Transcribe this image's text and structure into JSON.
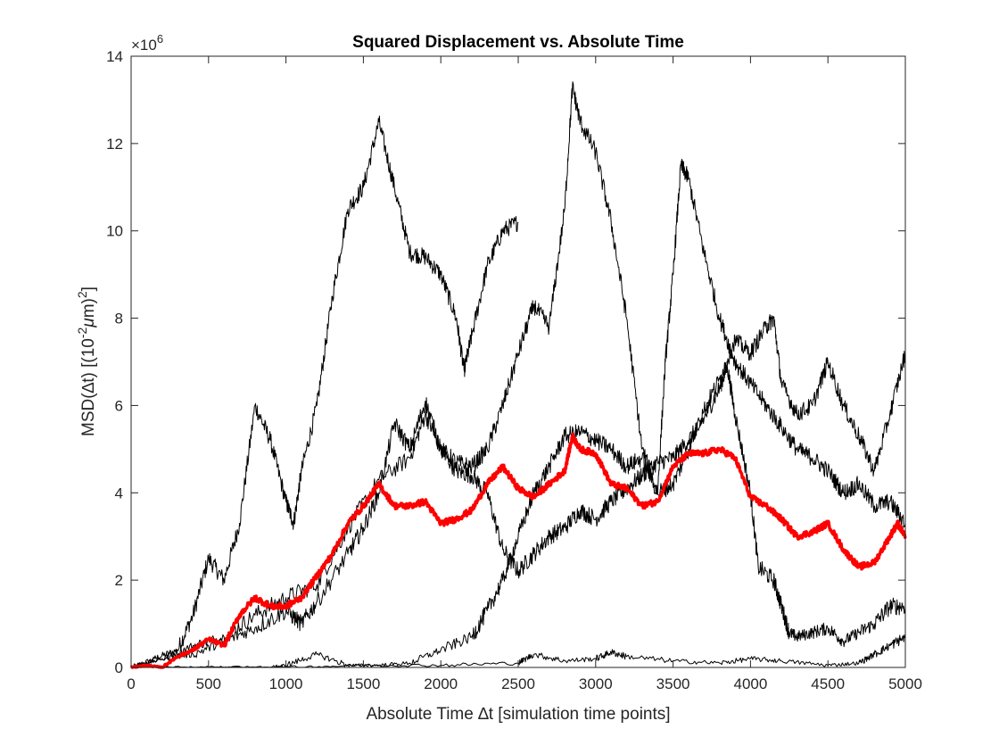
{
  "chart_data": {
    "type": "line",
    "title": "Squared Displacement vs. Absolute Time",
    "xlabel": "Absolute Time ∆t [simulation time points]",
    "ylabel": {
      "prefix": "MSD(∆t) [(10",
      "sup1": "-2",
      "mu": "μ",
      "mid": "m)",
      "sup2": "2",
      "suffix": "]"
    },
    "y_multiplier": {
      "base": "×10",
      "exponent": "6"
    },
    "xlim": [
      0,
      5000
    ],
    "ylim": [
      0,
      14000000
    ],
    "xticks": [
      0,
      500,
      1000,
      1500,
      2000,
      2500,
      3000,
      3500,
      4000,
      4500,
      5000
    ],
    "yticks": [
      0,
      2000000,
      4000000,
      6000000,
      8000000,
      10000000,
      12000000,
      14000000
    ],
    "ytick_labels": [
      "0",
      "2",
      "4",
      "6",
      "8",
      "10",
      "12",
      "14"
    ],
    "grid": false,
    "legend": "none",
    "series": [
      {
        "color": "#000000",
        "points": [
          [
            0,
            0
          ],
          [
            150,
            200000
          ],
          [
            300,
            400000
          ],
          [
            400,
            1200000
          ],
          [
            500,
            2500000
          ],
          [
            600,
            2000000
          ],
          [
            700,
            3300000
          ],
          [
            800,
            6000000
          ],
          [
            900,
            5200000
          ],
          [
            1000,
            3800000
          ],
          [
            1050,
            3300000
          ],
          [
            1100,
            4500000
          ],
          [
            1200,
            6000000
          ],
          [
            1300,
            8500000
          ],
          [
            1400,
            10500000
          ],
          [
            1500,
            11000000
          ],
          [
            1600,
            12500000
          ],
          [
            1700,
            11000000
          ],
          [
            1800,
            9500000
          ],
          [
            1900,
            9400000
          ],
          [
            2000,
            9000000
          ],
          [
            2100,
            8000000
          ],
          [
            2150,
            6800000
          ],
          [
            2200,
            7600000
          ],
          [
            2300,
            9200000
          ],
          [
            2400,
            10000000
          ],
          [
            2500,
            10200000
          ]
        ]
      },
      {
        "color": "#000000",
        "points": [
          [
            0,
            0
          ],
          [
            200,
            200000
          ],
          [
            400,
            500000
          ],
          [
            600,
            700000
          ],
          [
            800,
            1200000
          ],
          [
            1000,
            1600000
          ],
          [
            1200,
            1900000
          ],
          [
            1400,
            3200000
          ],
          [
            1600,
            4300000
          ],
          [
            1800,
            4800000
          ],
          [
            1900,
            5800000
          ],
          [
            2000,
            5000000
          ],
          [
            2100,
            4500000
          ],
          [
            2200,
            4400000
          ],
          [
            2300,
            4000000
          ],
          [
            2400,
            2700000
          ],
          [
            2500,
            2200000
          ],
          [
            2600,
            2600000
          ],
          [
            2700,
            3000000
          ],
          [
            2800,
            3200000
          ],
          [
            2900,
            3600000
          ],
          [
            3000,
            3400000
          ],
          [
            3100,
            3800000
          ],
          [
            3200,
            4100000
          ],
          [
            3300,
            4400000
          ],
          [
            3400,
            4700000
          ],
          [
            3500,
            4800000
          ],
          [
            3600,
            5200000
          ],
          [
            3700,
            5700000
          ],
          [
            3800,
            6400000
          ],
          [
            3850,
            6900000
          ],
          [
            3900,
            5800000
          ],
          [
            4000,
            4000000
          ],
          [
            4050,
            2300000
          ],
          [
            4150,
            2000000
          ],
          [
            4200,
            1400000
          ],
          [
            4250,
            800000
          ],
          [
            4300,
            700000
          ],
          [
            4400,
            800000
          ],
          [
            4500,
            900000
          ],
          [
            4600,
            600000
          ],
          [
            4700,
            800000
          ],
          [
            4800,
            1000000
          ],
          [
            4900,
            1400000
          ],
          [
            5000,
            1400000
          ]
        ]
      },
      {
        "color": "#000000",
        "points": [
          [
            0,
            0
          ],
          [
            200,
            200000
          ],
          [
            400,
            300000
          ],
          [
            600,
            600000
          ],
          [
            800,
            900000
          ],
          [
            1000,
            1300000
          ],
          [
            1100,
            1000000
          ],
          [
            1200,
            1500000
          ],
          [
            1400,
            2600000
          ],
          [
            1500,
            3200000
          ],
          [
            1600,
            4000000
          ],
          [
            1700,
            5600000
          ],
          [
            1800,
            5000000
          ],
          [
            1900,
            6100000
          ],
          [
            2000,
            5000000
          ],
          [
            2100,
            4700000
          ],
          [
            2200,
            4600000
          ],
          [
            2300,
            5000000
          ],
          [
            2400,
            6000000
          ],
          [
            2500,
            7200000
          ],
          [
            2600,
            8300000
          ],
          [
            2700,
            7800000
          ],
          [
            2800,
            10500000
          ],
          [
            2850,
            13300000
          ],
          [
            2900,
            12500000
          ],
          [
            3000,
            11800000
          ],
          [
            3100,
            10200000
          ],
          [
            3200,
            8000000
          ],
          [
            3300,
            5000000
          ],
          [
            3400,
            4000000
          ],
          [
            3450,
            7000000
          ],
          [
            3500,
            9000000
          ],
          [
            3550,
            11500000
          ],
          [
            3600,
            11200000
          ],
          [
            3700,
            9500000
          ],
          [
            3800,
            8000000
          ],
          [
            3900,
            7000000
          ],
          [
            4000,
            6500000
          ],
          [
            4100,
            6000000
          ],
          [
            4200,
            5500000
          ],
          [
            4300,
            5000000
          ],
          [
            4400,
            4800000
          ],
          [
            4500,
            4500000
          ],
          [
            4600,
            4000000
          ],
          [
            4700,
            4200000
          ],
          [
            4800,
            3700000
          ],
          [
            4900,
            3800000
          ],
          [
            5000,
            3300000
          ]
        ]
      },
      {
        "color": "#000000",
        "points": [
          [
            0,
            0
          ],
          [
            300,
            0
          ],
          [
            600,
            0
          ],
          [
            900,
            0
          ],
          [
            1000,
            50000
          ],
          [
            1200,
            300000
          ],
          [
            1400,
            50000
          ],
          [
            1600,
            50000
          ],
          [
            1800,
            100000
          ],
          [
            2000,
            400000
          ],
          [
            2200,
            700000
          ],
          [
            2300,
            1300000
          ],
          [
            2400,
            2000000
          ],
          [
            2500,
            3000000
          ],
          [
            2600,
            4000000
          ],
          [
            2700,
            4600000
          ],
          [
            2800,
            5300000
          ],
          [
            2900,
            5400000
          ],
          [
            3000,
            5200000
          ],
          [
            3100,
            5000000
          ],
          [
            3200,
            4600000
          ],
          [
            3300,
            4800000
          ],
          [
            3400,
            4000000
          ],
          [
            3500,
            4200000
          ],
          [
            3600,
            5000000
          ],
          [
            3700,
            5900000
          ],
          [
            3800,
            6600000
          ],
          [
            3900,
            7500000
          ],
          [
            4000,
            7200000
          ],
          [
            4100,
            7800000
          ],
          [
            4150,
            8000000
          ],
          [
            4200,
            6500000
          ],
          [
            4300,
            5800000
          ],
          [
            4400,
            6000000
          ],
          [
            4500,
            7000000
          ],
          [
            4600,
            6000000
          ],
          [
            4700,
            5300000
          ],
          [
            4800,
            4500000
          ],
          [
            4900,
            5800000
          ],
          [
            5000,
            7200000
          ]
        ]
      },
      {
        "color": "#000000",
        "points": [
          [
            0,
            0
          ],
          [
            500,
            0
          ],
          [
            1000,
            0
          ],
          [
            1500,
            50000
          ],
          [
            2000,
            50000
          ],
          [
            2500,
            100000
          ],
          [
            2600,
            300000
          ],
          [
            2800,
            150000
          ],
          [
            3000,
            200000
          ],
          [
            3100,
            350000
          ],
          [
            3200,
            250000
          ],
          [
            3500,
            150000
          ],
          [
            3800,
            100000
          ],
          [
            4000,
            200000
          ],
          [
            4200,
            150000
          ],
          [
            4500,
            50000
          ],
          [
            4700,
            100000
          ],
          [
            4800,
            300000
          ],
          [
            4900,
            500000
          ],
          [
            5000,
            700000
          ]
        ]
      },
      {
        "color": "#ff0000",
        "bold": true,
        "points": [
          [
            0,
            0
          ],
          [
            100,
            50000
          ],
          [
            200,
            0
          ],
          [
            300,
            250000
          ],
          [
            400,
            400000
          ],
          [
            500,
            650000
          ],
          [
            600,
            500000
          ],
          [
            700,
            1200000
          ],
          [
            800,
            1600000
          ],
          [
            900,
            1400000
          ],
          [
            1000,
            1400000
          ],
          [
            1100,
            1600000
          ],
          [
            1200,
            2100000
          ],
          [
            1300,
            2600000
          ],
          [
            1400,
            3300000
          ],
          [
            1500,
            3700000
          ],
          [
            1600,
            4200000
          ],
          [
            1700,
            3700000
          ],
          [
            1800,
            3700000
          ],
          [
            1900,
            3800000
          ],
          [
            2000,
            3300000
          ],
          [
            2100,
            3400000
          ],
          [
            2200,
            3600000
          ],
          [
            2300,
            4200000
          ],
          [
            2400,
            4600000
          ],
          [
            2500,
            4100000
          ],
          [
            2600,
            3900000
          ],
          [
            2700,
            4200000
          ],
          [
            2800,
            4500000
          ],
          [
            2850,
            5300000
          ],
          [
            2900,
            5000000
          ],
          [
            3000,
            4900000
          ],
          [
            3100,
            4200000
          ],
          [
            3200,
            4100000
          ],
          [
            3300,
            3700000
          ],
          [
            3400,
            3800000
          ],
          [
            3500,
            4600000
          ],
          [
            3600,
            4900000
          ],
          [
            3700,
            4900000
          ],
          [
            3800,
            5000000
          ],
          [
            3900,
            4800000
          ],
          [
            4000,
            3900000
          ],
          [
            4100,
            3700000
          ],
          [
            4200,
            3400000
          ],
          [
            4300,
            3000000
          ],
          [
            4400,
            3100000
          ],
          [
            4500,
            3300000
          ],
          [
            4600,
            2700000
          ],
          [
            4700,
            2300000
          ],
          [
            4800,
            2400000
          ],
          [
            4900,
            3000000
          ],
          [
            4950,
            3300000
          ],
          [
            5000,
            3000000
          ]
        ]
      }
    ]
  }
}
